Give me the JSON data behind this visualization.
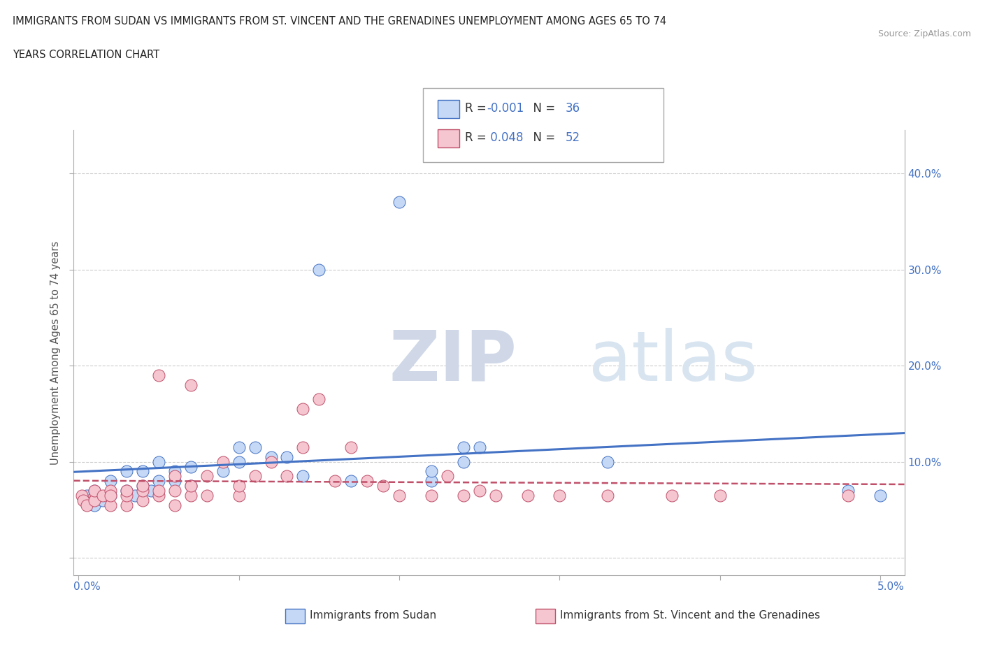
{
  "title_line1": "IMMIGRANTS FROM SUDAN VS IMMIGRANTS FROM ST. VINCENT AND THE GRENADINES UNEMPLOYMENT AMONG AGES 65 TO 74",
  "title_line2": "YEARS CORRELATION CHART",
  "source": "Source: ZipAtlas.com",
  "ylabel": "Unemployment Among Ages 65 to 74 years",
  "sudan_R": "-0.001",
  "sudan_N": "36",
  "stvincent_R": "0.048",
  "stvincent_N": "52",
  "sudan_fill": "#c5d8f5",
  "sudan_edge": "#4472c4",
  "stvincent_fill": "#f5c5d0",
  "stvincent_edge": "#c0506a",
  "ylim_min": -0.018,
  "ylim_max": 0.445,
  "xlim_min": -0.0003,
  "xlim_max": 0.0515,
  "yticks": [
    0.0,
    0.1,
    0.2,
    0.3,
    0.4
  ],
  "ytick_labels": [
    "",
    "10.0%",
    "20.0%",
    "30.0%",
    "40.0%"
  ],
  "sudan_x": [
    0.0005,
    0.001,
    0.001,
    0.0015,
    0.002,
    0.002,
    0.003,
    0.003,
    0.0035,
    0.004,
    0.004,
    0.0045,
    0.005,
    0.005,
    0.006,
    0.006,
    0.007,
    0.007,
    0.009,
    0.01,
    0.01,
    0.011,
    0.012,
    0.013,
    0.014,
    0.015,
    0.017,
    0.02,
    0.022,
    0.022,
    0.024,
    0.024,
    0.025,
    0.033,
    0.048,
    0.05
  ],
  "sudan_y": [
    0.065,
    0.055,
    0.07,
    0.06,
    0.08,
    0.065,
    0.07,
    0.09,
    0.065,
    0.09,
    0.075,
    0.07,
    0.08,
    0.1,
    0.09,
    0.08,
    0.095,
    0.075,
    0.09,
    0.1,
    0.115,
    0.115,
    0.105,
    0.105,
    0.085,
    0.3,
    0.08,
    0.37,
    0.08,
    0.09,
    0.1,
    0.115,
    0.115,
    0.1,
    0.07,
    0.065
  ],
  "stvincent_x": [
    0.0002,
    0.0003,
    0.0005,
    0.001,
    0.001,
    0.001,
    0.0015,
    0.002,
    0.002,
    0.002,
    0.003,
    0.003,
    0.003,
    0.004,
    0.004,
    0.004,
    0.005,
    0.005,
    0.005,
    0.006,
    0.006,
    0.006,
    0.007,
    0.007,
    0.007,
    0.008,
    0.008,
    0.009,
    0.01,
    0.01,
    0.011,
    0.012,
    0.013,
    0.014,
    0.014,
    0.015,
    0.016,
    0.017,
    0.018,
    0.019,
    0.02,
    0.022,
    0.023,
    0.024,
    0.025,
    0.026,
    0.028,
    0.03,
    0.033,
    0.037,
    0.04,
    0.048
  ],
  "stvincent_y": [
    0.065,
    0.06,
    0.055,
    0.065,
    0.06,
    0.07,
    0.065,
    0.055,
    0.07,
    0.065,
    0.055,
    0.065,
    0.07,
    0.06,
    0.07,
    0.075,
    0.065,
    0.07,
    0.19,
    0.055,
    0.07,
    0.085,
    0.065,
    0.075,
    0.18,
    0.065,
    0.085,
    0.1,
    0.065,
    0.075,
    0.085,
    0.1,
    0.085,
    0.115,
    0.155,
    0.165,
    0.08,
    0.115,
    0.08,
    0.075,
    0.065,
    0.065,
    0.085,
    0.065,
    0.07,
    0.065,
    0.065,
    0.065,
    0.065,
    0.065,
    0.065,
    0.065
  ]
}
